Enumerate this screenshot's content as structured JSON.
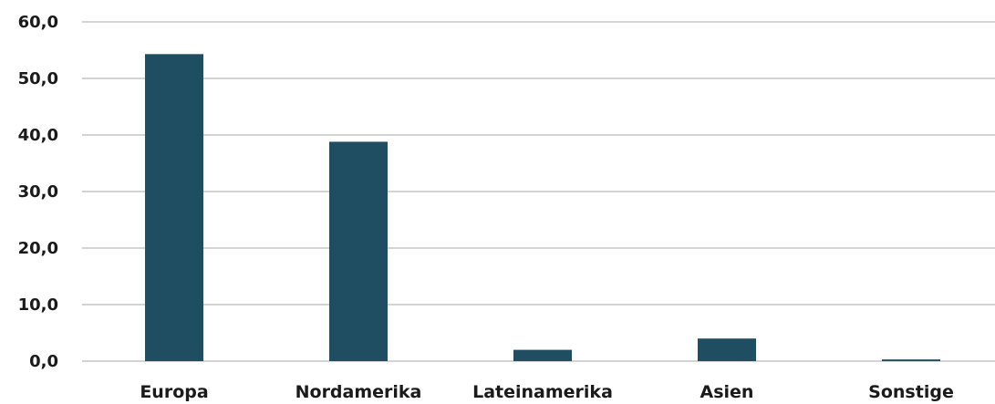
{
  "chart_data": {
    "type": "bar",
    "title": "",
    "xlabel": "",
    "ylabel": "",
    "categories": [
      "Europa",
      "Nordamerika",
      "Lateinamerika",
      "Asien",
      "Sonstige"
    ],
    "values": [
      54.3,
      38.8,
      2.0,
      4.0,
      0.3
    ],
    "ylim": [
      0,
      60
    ],
    "yticks": [
      0,
      10,
      20,
      30,
      40,
      50,
      60
    ],
    "ytick_labels": [
      "0,0",
      "10,0",
      "20,0",
      "30,0",
      "40,0",
      "50,0",
      "60,0"
    ],
    "grid": true,
    "legend": "none",
    "colors": {
      "bar": "#1f4e63",
      "grid": "#b9b9b9",
      "text": "#1a1a1a"
    }
  }
}
